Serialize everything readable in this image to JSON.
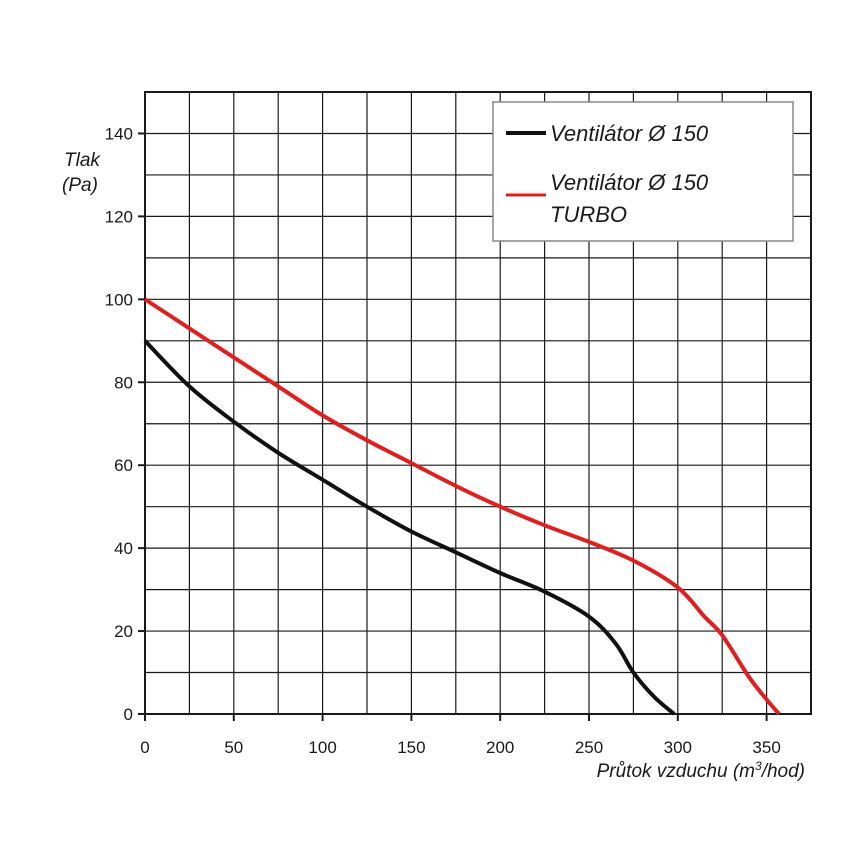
{
  "chart_data": {
    "type": "line",
    "title": "",
    "ylabel": "Tlak",
    "ylabel_unit": "(Pa)",
    "xlabel_prefix": "Průtok vzduchu (m",
    "xlabel_sup": "3",
    "xlabel_suffix": "/hod)",
    "xlim": [
      0,
      375
    ],
    "ylim": [
      0,
      150
    ],
    "x_ticks": [
      0,
      50,
      100,
      150,
      200,
      250,
      300,
      350
    ],
    "y_ticks": [
      0,
      20,
      40,
      60,
      80,
      100,
      120,
      140
    ],
    "x_grid_step": 25,
    "y_grid_step": 10,
    "grid": true,
    "legend_position": "top-right",
    "series": [
      {
        "name": "Ventilátor Ø 150",
        "label_lines": [
          "Ventilátor Ø 150"
        ],
        "color": "#111111",
        "points": [
          [
            0,
            90
          ],
          [
            25,
            79
          ],
          [
            50,
            70.5
          ],
          [
            75,
            63
          ],
          [
            100,
            56.5
          ],
          [
            125,
            50
          ],
          [
            150,
            44
          ],
          [
            175,
            39
          ],
          [
            200,
            34
          ],
          [
            225,
            29.5
          ],
          [
            250,
            23.5
          ],
          [
            265,
            17
          ],
          [
            275,
            10
          ],
          [
            287,
            4
          ],
          [
            298,
            0
          ]
        ]
      },
      {
        "name": "Ventilátor Ø 150 TURBO",
        "label_lines": [
          "Ventilátor Ø 150",
          "TURBO"
        ],
        "color": "#e02020",
        "points": [
          [
            0,
            100
          ],
          [
            25,
            93
          ],
          [
            50,
            86
          ],
          [
            75,
            79
          ],
          [
            100,
            72
          ],
          [
            125,
            66
          ],
          [
            150,
            60.5
          ],
          [
            175,
            55
          ],
          [
            200,
            50
          ],
          [
            225,
            45.5
          ],
          [
            250,
            41.5
          ],
          [
            275,
            37
          ],
          [
            300,
            30.5
          ],
          [
            315,
            23.5
          ],
          [
            325,
            19
          ],
          [
            340,
            9
          ],
          [
            350,
            3.5
          ],
          [
            357,
            0
          ]
        ]
      }
    ]
  }
}
